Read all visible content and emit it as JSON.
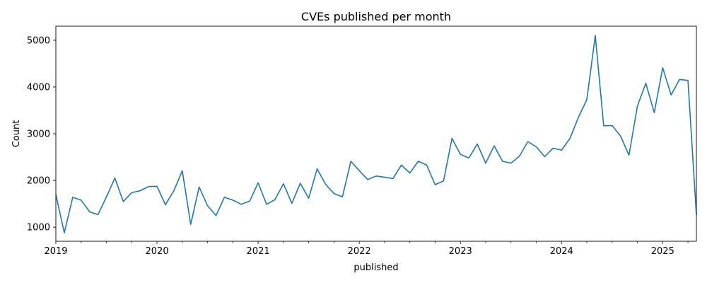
{
  "chart_data": {
    "type": "line",
    "title": "CVEs published per month",
    "xlabel": "published",
    "ylabel": "Count",
    "xlim": [
      "2019-01",
      "2025-05"
    ],
    "ylim": [
      700,
      5300
    ],
    "y_ticks": [
      1000,
      2000,
      3000,
      4000,
      5000
    ],
    "x_ticks": [
      {
        "date": "2019-01",
        "label": "2019"
      },
      {
        "date": "2020-01",
        "label": "2020"
      },
      {
        "date": "2021-01",
        "label": "2021"
      },
      {
        "date": "2022-01",
        "label": "2022"
      },
      {
        "date": "2023-01",
        "label": "2023"
      },
      {
        "date": "2024-01",
        "label": "2024"
      },
      {
        "date": "2025-01",
        "label": "2025"
      }
    ],
    "grid": false,
    "line_color": "#1f77b4",
    "series": [
      {
        "x": [
          "2019-01",
          "2019-02",
          "2019-03",
          "2019-04",
          "2019-05",
          "2019-06",
          "2019-07",
          "2019-08",
          "2019-09",
          "2019-10",
          "2019-11",
          "2019-12",
          "2020-01",
          "2020-02",
          "2020-03",
          "2020-04",
          "2020-05",
          "2020-06",
          "2020-07",
          "2020-08",
          "2020-09",
          "2020-10",
          "2020-11",
          "2020-12",
          "2021-01",
          "2021-02",
          "2021-03",
          "2021-04",
          "2021-05",
          "2021-06",
          "2021-07",
          "2021-08",
          "2021-09",
          "2021-10",
          "2021-11",
          "2021-12",
          "2022-01",
          "2022-02",
          "2022-03",
          "2022-04",
          "2022-05",
          "2022-06",
          "2022-07",
          "2022-08",
          "2022-09",
          "2022-10",
          "2022-11",
          "2022-12",
          "2023-01",
          "2023-02",
          "2023-03",
          "2023-04",
          "2023-05",
          "2023-06",
          "2023-07",
          "2023-08",
          "2023-09",
          "2023-10",
          "2023-11",
          "2023-12",
          "2024-01",
          "2024-02",
          "2024-03",
          "2024-04",
          "2024-05",
          "2024-06",
          "2024-07",
          "2024-08",
          "2024-09",
          "2024-10",
          "2024-11",
          "2024-12",
          "2025-01",
          "2025-02",
          "2025-03",
          "2025-04",
          "2025-05"
        ],
        "values": [
          1700,
          880,
          1640,
          1580,
          1330,
          1270,
          1650,
          2050,
          1550,
          1740,
          1780,
          1870,
          1875,
          1480,
          1780,
          2210,
          1060,
          1860,
          1460,
          1250,
          1640,
          1580,
          1490,
          1560,
          1950,
          1490,
          1590,
          1930,
          1510,
          1940,
          1620,
          2250,
          1920,
          1720,
          1650,
          2410,
          2210,
          2020,
          2095,
          2070,
          2040,
          2330,
          2160,
          2410,
          2330,
          1910,
          1990,
          2900,
          2560,
          2480,
          2780,
          2370,
          2740,
          2410,
          2370,
          2520,
          2830,
          2720,
          2510,
          2690,
          2650,
          2900,
          3350,
          3730,
          5100,
          3170,
          3175,
          2950,
          2540,
          3590,
          4080,
          3450,
          4410,
          3830,
          4160,
          4140,
          1260
        ]
      }
    ]
  }
}
